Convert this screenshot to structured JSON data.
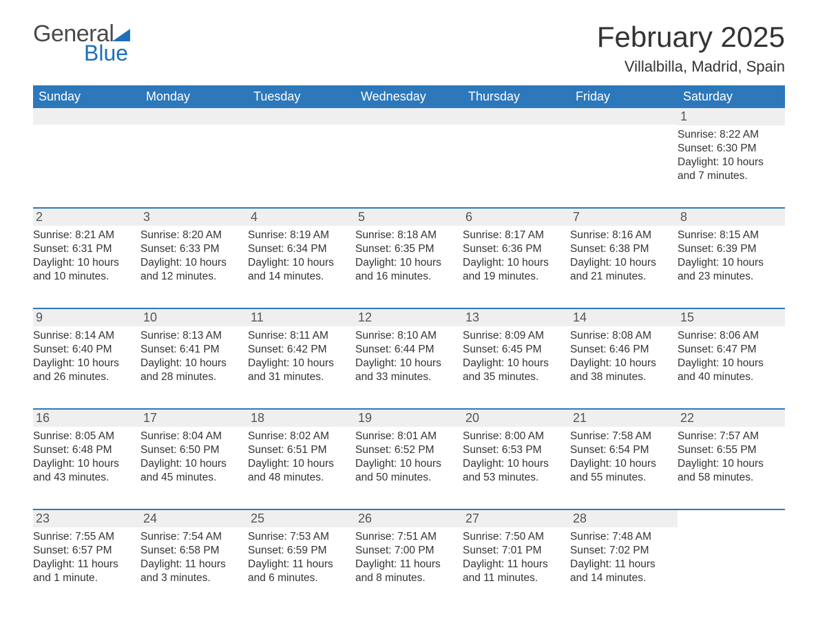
{
  "logo": {
    "word1": "General",
    "word2": "Blue",
    "accent": "#1e6fb8",
    "text_color": "#4a4a4a"
  },
  "title": "February 2025",
  "location": "Villalbilla, Madrid, Spain",
  "colors": {
    "header_bg": "#2d78bb",
    "header_text": "#ffffff",
    "row_sep": "#2d78bb",
    "daynum_bg": "#efefef",
    "body_text": "#333333",
    "page_bg": "#ffffff"
  },
  "dow": [
    "Sunday",
    "Monday",
    "Tuesday",
    "Wednesday",
    "Thursday",
    "Friday",
    "Saturday"
  ],
  "weeks": [
    [
      null,
      null,
      null,
      null,
      null,
      null,
      {
        "n": "1",
        "sunrise": "Sunrise: 8:22 AM",
        "sunset": "Sunset: 6:30 PM",
        "daylight": "Daylight: 10 hours and 7 minutes."
      }
    ],
    [
      {
        "n": "2",
        "sunrise": "Sunrise: 8:21 AM",
        "sunset": "Sunset: 6:31 PM",
        "daylight": "Daylight: 10 hours and 10 minutes."
      },
      {
        "n": "3",
        "sunrise": "Sunrise: 8:20 AM",
        "sunset": "Sunset: 6:33 PM",
        "daylight": "Daylight: 10 hours and 12 minutes."
      },
      {
        "n": "4",
        "sunrise": "Sunrise: 8:19 AM",
        "sunset": "Sunset: 6:34 PM",
        "daylight": "Daylight: 10 hours and 14 minutes."
      },
      {
        "n": "5",
        "sunrise": "Sunrise: 8:18 AM",
        "sunset": "Sunset: 6:35 PM",
        "daylight": "Daylight: 10 hours and 16 minutes."
      },
      {
        "n": "6",
        "sunrise": "Sunrise: 8:17 AM",
        "sunset": "Sunset: 6:36 PM",
        "daylight": "Daylight: 10 hours and 19 minutes."
      },
      {
        "n": "7",
        "sunrise": "Sunrise: 8:16 AM",
        "sunset": "Sunset: 6:38 PM",
        "daylight": "Daylight: 10 hours and 21 minutes."
      },
      {
        "n": "8",
        "sunrise": "Sunrise: 8:15 AM",
        "sunset": "Sunset: 6:39 PM",
        "daylight": "Daylight: 10 hours and 23 minutes."
      }
    ],
    [
      {
        "n": "9",
        "sunrise": "Sunrise: 8:14 AM",
        "sunset": "Sunset: 6:40 PM",
        "daylight": "Daylight: 10 hours and 26 minutes."
      },
      {
        "n": "10",
        "sunrise": "Sunrise: 8:13 AM",
        "sunset": "Sunset: 6:41 PM",
        "daylight": "Daylight: 10 hours and 28 minutes."
      },
      {
        "n": "11",
        "sunrise": "Sunrise: 8:11 AM",
        "sunset": "Sunset: 6:42 PM",
        "daylight": "Daylight: 10 hours and 31 minutes."
      },
      {
        "n": "12",
        "sunrise": "Sunrise: 8:10 AM",
        "sunset": "Sunset: 6:44 PM",
        "daylight": "Daylight: 10 hours and 33 minutes."
      },
      {
        "n": "13",
        "sunrise": "Sunrise: 8:09 AM",
        "sunset": "Sunset: 6:45 PM",
        "daylight": "Daylight: 10 hours and 35 minutes."
      },
      {
        "n": "14",
        "sunrise": "Sunrise: 8:08 AM",
        "sunset": "Sunset: 6:46 PM",
        "daylight": "Daylight: 10 hours and 38 minutes."
      },
      {
        "n": "15",
        "sunrise": "Sunrise: 8:06 AM",
        "sunset": "Sunset: 6:47 PM",
        "daylight": "Daylight: 10 hours and 40 minutes."
      }
    ],
    [
      {
        "n": "16",
        "sunrise": "Sunrise: 8:05 AM",
        "sunset": "Sunset: 6:48 PM",
        "daylight": "Daylight: 10 hours and 43 minutes."
      },
      {
        "n": "17",
        "sunrise": "Sunrise: 8:04 AM",
        "sunset": "Sunset: 6:50 PM",
        "daylight": "Daylight: 10 hours and 45 minutes."
      },
      {
        "n": "18",
        "sunrise": "Sunrise: 8:02 AM",
        "sunset": "Sunset: 6:51 PM",
        "daylight": "Daylight: 10 hours and 48 minutes."
      },
      {
        "n": "19",
        "sunrise": "Sunrise: 8:01 AM",
        "sunset": "Sunset: 6:52 PM",
        "daylight": "Daylight: 10 hours and 50 minutes."
      },
      {
        "n": "20",
        "sunrise": "Sunrise: 8:00 AM",
        "sunset": "Sunset: 6:53 PM",
        "daylight": "Daylight: 10 hours and 53 minutes."
      },
      {
        "n": "21",
        "sunrise": "Sunrise: 7:58 AM",
        "sunset": "Sunset: 6:54 PM",
        "daylight": "Daylight: 10 hours and 55 minutes."
      },
      {
        "n": "22",
        "sunrise": "Sunrise: 7:57 AM",
        "sunset": "Sunset: 6:55 PM",
        "daylight": "Daylight: 10 hours and 58 minutes."
      }
    ],
    [
      {
        "n": "23",
        "sunrise": "Sunrise: 7:55 AM",
        "sunset": "Sunset: 6:57 PM",
        "daylight": "Daylight: 11 hours and 1 minute."
      },
      {
        "n": "24",
        "sunrise": "Sunrise: 7:54 AM",
        "sunset": "Sunset: 6:58 PM",
        "daylight": "Daylight: 11 hours and 3 minutes."
      },
      {
        "n": "25",
        "sunrise": "Sunrise: 7:53 AM",
        "sunset": "Sunset: 6:59 PM",
        "daylight": "Daylight: 11 hours and 6 minutes."
      },
      {
        "n": "26",
        "sunrise": "Sunrise: 7:51 AM",
        "sunset": "Sunset: 7:00 PM",
        "daylight": "Daylight: 11 hours and 8 minutes."
      },
      {
        "n": "27",
        "sunrise": "Sunrise: 7:50 AM",
        "sunset": "Sunset: 7:01 PM",
        "daylight": "Daylight: 11 hours and 11 minutes."
      },
      {
        "n": "28",
        "sunrise": "Sunrise: 7:48 AM",
        "sunset": "Sunset: 7:02 PM",
        "daylight": "Daylight: 11 hours and 14 minutes."
      },
      null
    ]
  ]
}
